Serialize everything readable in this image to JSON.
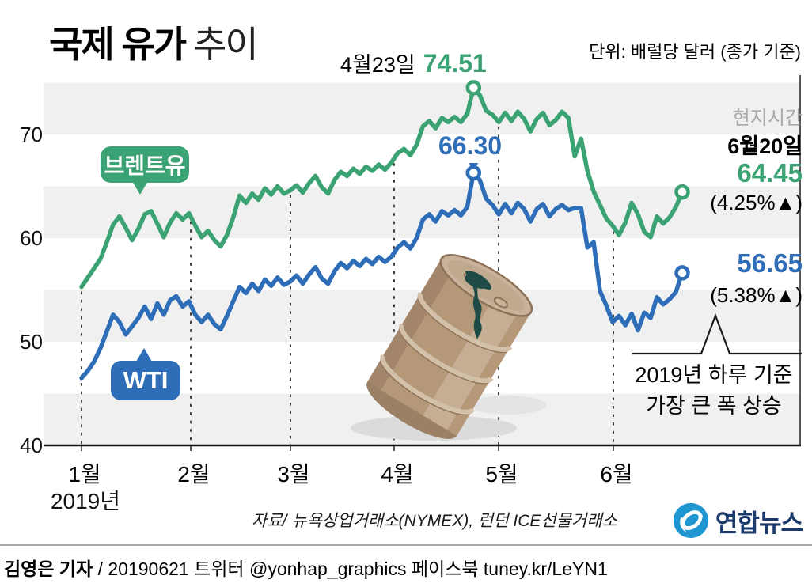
{
  "title": {
    "bold": "국제 유가",
    "light": "추이"
  },
  "unit_note": "단위: 배럴당 달러 (종가 기준)",
  "colors": {
    "brent": "#3BA273",
    "wti": "#2E6EB8",
    "band": "#F0F0F1",
    "gray_text": "#A9A9A9",
    "logo_blue": "#1E96D2",
    "logo_navy": "#1A3A6E",
    "barrel_body": "#B49878",
    "oil_spill": "#1F4B46"
  },
  "annotations": {
    "peak_date": "4월23일",
    "brent_peak": "74.51",
    "wti_peak": "66.30",
    "local_time": "현지시간",
    "last_date": "6월20일",
    "brent_last": "64.45",
    "brent_change": "(4.25%▲)",
    "wti_last": "56.65",
    "wti_change": "(5.38%▲)",
    "biggest_line1": "2019년 하루 기준",
    "biggest_line2": "가장 큰 폭 상승"
  },
  "legend": {
    "brent": "브렌트유",
    "wti": "WTI"
  },
  "source_note": "자료/ 뉴욕상업거래소(NYMEX), 런던 ICE선물거래소",
  "logo_text": "연합뉴스",
  "footer": {
    "author": "김영은 기자",
    "rest": " / 20190621  트위터 @yonhap_graphics  페이스북 tuney.kr/LeYN1"
  },
  "chart_data": {
    "type": "line",
    "title": "국제 유가 추이",
    "unit": "배럴당 달러 (종가 기준)",
    "x_months": [
      "1월",
      "2월",
      "3월",
      "4월",
      "5월",
      "6월"
    ],
    "year_label": "2019년",
    "y_ticks": [
      70,
      60,
      50,
      40
    ],
    "ylim": [
      40,
      76
    ],
    "grid": "alternating-bands-5",
    "legend_position": "inline-badges",
    "series": [
      {
        "name": "브렌트유",
        "color": "#3BA273",
        "peak": {
          "date": "4월23일",
          "value": 74.51
        },
        "last": {
          "date": "6월20일",
          "value": 64.45,
          "change_pct": 4.25,
          "direction": "up"
        },
        "values": [
          55.3,
          56.2,
          57.1,
          58.0,
          59.6,
          61.3,
          62.1,
          61.0,
          59.8,
          60.9,
          62.3,
          62.6,
          61.4,
          60.1,
          61.5,
          62.4,
          61.8,
          62.4,
          61.2,
          60.1,
          60.7,
          59.8,
          59.2,
          60.3,
          62.0,
          64.1,
          63.4,
          64.3,
          63.7,
          64.8,
          64.2,
          65.0,
          64.3,
          64.6,
          65.1,
          64.4,
          65.3,
          66.0,
          64.9,
          64.3,
          65.6,
          66.4,
          66.0,
          66.7,
          66.2,
          66.9,
          66.5,
          67.1,
          66.6,
          67.3,
          68.2,
          68.6,
          68.0,
          69.0,
          70.8,
          71.3,
          70.6,
          71.6,
          71.2,
          71.7,
          71.2,
          72.0,
          74.51,
          73.8,
          72.3,
          71.9,
          71.2,
          72.1,
          71.3,
          72.2,
          71.5,
          70.3,
          71.5,
          72.1,
          70.9,
          71.4,
          72.2,
          71.6,
          67.9,
          69.6,
          66.5,
          64.5,
          63.2,
          61.9,
          61.2,
          60.3,
          61.5,
          63.4,
          62.3,
          60.6,
          60.1,
          62.1,
          61.4,
          62.0,
          63.0,
          64.45
        ]
      },
      {
        "name": "WTI",
        "color": "#2E6EB8",
        "peak": {
          "date": "4월23일",
          "value": 66.3
        },
        "last": {
          "date": "6월20일",
          "value": 56.65,
          "change_pct": 5.38,
          "direction": "up"
        },
        "values": [
          46.5,
          47.2,
          48.1,
          49.4,
          51.0,
          52.6,
          51.9,
          50.7,
          51.5,
          52.3,
          53.4,
          52.2,
          53.7,
          52.6,
          54.0,
          54.4,
          53.4,
          53.9,
          52.6,
          51.9,
          52.6,
          51.7,
          51.2,
          52.5,
          53.9,
          55.3,
          54.7,
          55.6,
          54.9,
          56.0,
          55.4,
          56.2,
          55.5,
          55.8,
          56.4,
          55.6,
          56.5,
          57.2,
          56.1,
          55.6,
          56.8,
          57.6,
          57.1,
          57.8,
          57.3,
          58.0,
          57.5,
          58.2,
          57.7,
          58.2,
          59.1,
          59.6,
          59.0,
          60.0,
          61.8,
          62.3,
          61.6,
          62.6,
          62.2,
          62.7,
          62.2,
          63.0,
          66.3,
          65.6,
          63.8,
          63.2,
          62.3,
          63.3,
          62.4,
          63.4,
          62.8,
          61.6,
          62.8,
          63.3,
          62.1,
          62.8,
          63.2,
          62.7,
          62.9,
          62.9,
          59.1,
          59.6,
          54.9,
          53.5,
          51.9,
          52.5,
          51.6,
          52.7,
          51.1,
          52.8,
          52.3,
          54.3,
          53.6,
          54.1,
          54.8,
          56.65
        ]
      }
    ]
  }
}
